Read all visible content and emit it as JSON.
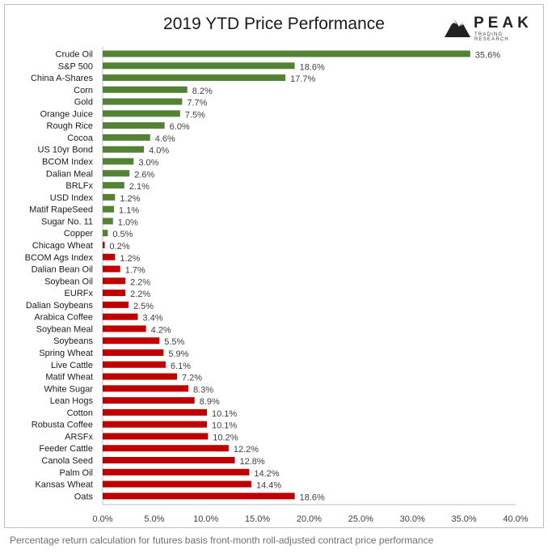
{
  "title": "2019 YTD Price Performance",
  "logo": {
    "wordmark": "PEAK",
    "tagline": "TRADING RESEARCH"
  },
  "caption": "Percentage return calculation for futures basis front-month roll-adjusted contract price performance",
  "colors": {
    "positive": "#548235",
    "negative": "#c00000",
    "axis": "#bfbfbf",
    "text": "#1a1a1a"
  },
  "chart_data": {
    "type": "bar",
    "orientation": "horizontal",
    "title": "2019 YTD Price Performance",
    "xlim": [
      0,
      40
    ],
    "x_ticks": [
      "0.0%",
      "5.0%",
      "10.0%",
      "15.0%",
      "20.0%",
      "25.0%",
      "30.0%",
      "35.0%",
      "40.0%"
    ],
    "categories": [
      "Crude Oil",
      "S&P 500",
      "China A-Shares",
      "Corn",
      "Gold",
      "Orange Juice",
      "Rough Rice",
      "Cocoa",
      "US 10yr Bond",
      "BCOM Index",
      "Dalian Meal",
      "BRLFx",
      "USD Index",
      "Matif RapeSeed",
      "Sugar No. 11",
      "Copper",
      "Chicago Wheat",
      "BCOM Ags Index",
      "Dalian Bean Oil",
      "Soybean Oil",
      "EURFx",
      "Dalian Soybeans",
      "Arabica Coffee",
      "Soybean Meal",
      "Soybeans",
      "Spring Wheat",
      "Live Cattle",
      "Matif Wheat",
      "White Sugar",
      "Lean Hogs",
      "Cotton",
      "Robusta Coffee",
      "ARSFx",
      "Feeder Cattle",
      "Canola Seed",
      "Palm Oil",
      "Kansas Wheat",
      "Oats"
    ],
    "values": [
      35.6,
      18.6,
      17.7,
      8.2,
      7.7,
      7.5,
      6.0,
      4.6,
      4.0,
      3.0,
      2.6,
      2.1,
      1.2,
      1.1,
      1.0,
      0.5,
      0.2,
      1.2,
      1.7,
      2.2,
      2.2,
      2.5,
      3.4,
      4.2,
      5.5,
      5.9,
      6.1,
      7.2,
      8.3,
      8.9,
      10.1,
      10.1,
      10.2,
      12.2,
      12.8,
      14.2,
      14.4,
      18.6
    ],
    "labels": [
      "35.6%",
      "18.6%",
      "17.7%",
      "8.2%",
      "7.7%",
      "7.5%",
      "6.0%",
      "4.6%",
      "4.0%",
      "3.0%",
      "2.6%",
      "2.1%",
      "1.2%",
      "1.1%",
      "1.0%",
      "0.5%",
      "0.2%",
      "1.2%",
      "1.7%",
      "2.2%",
      "2.2%",
      "2.5%",
      "3.4%",
      "4.2%",
      "5.5%",
      "5.9%",
      "6.1%",
      "7.2%",
      "8.3%",
      "8.9%",
      "10.1%",
      "10.1%",
      "10.2%",
      "12.2%",
      "12.8%",
      "14.2%",
      "14.4%",
      "18.6%"
    ],
    "bar_colors": [
      "green",
      "green",
      "green",
      "green",
      "green",
      "green",
      "green",
      "green",
      "green",
      "green",
      "green",
      "green",
      "green",
      "green",
      "green",
      "green",
      "red",
      "red",
      "red",
      "red",
      "red",
      "red",
      "red",
      "red",
      "red",
      "red",
      "red",
      "red",
      "red",
      "red",
      "red",
      "red",
      "red",
      "red",
      "red",
      "red",
      "red",
      "red"
    ],
    "grid": false,
    "legend": "none"
  }
}
